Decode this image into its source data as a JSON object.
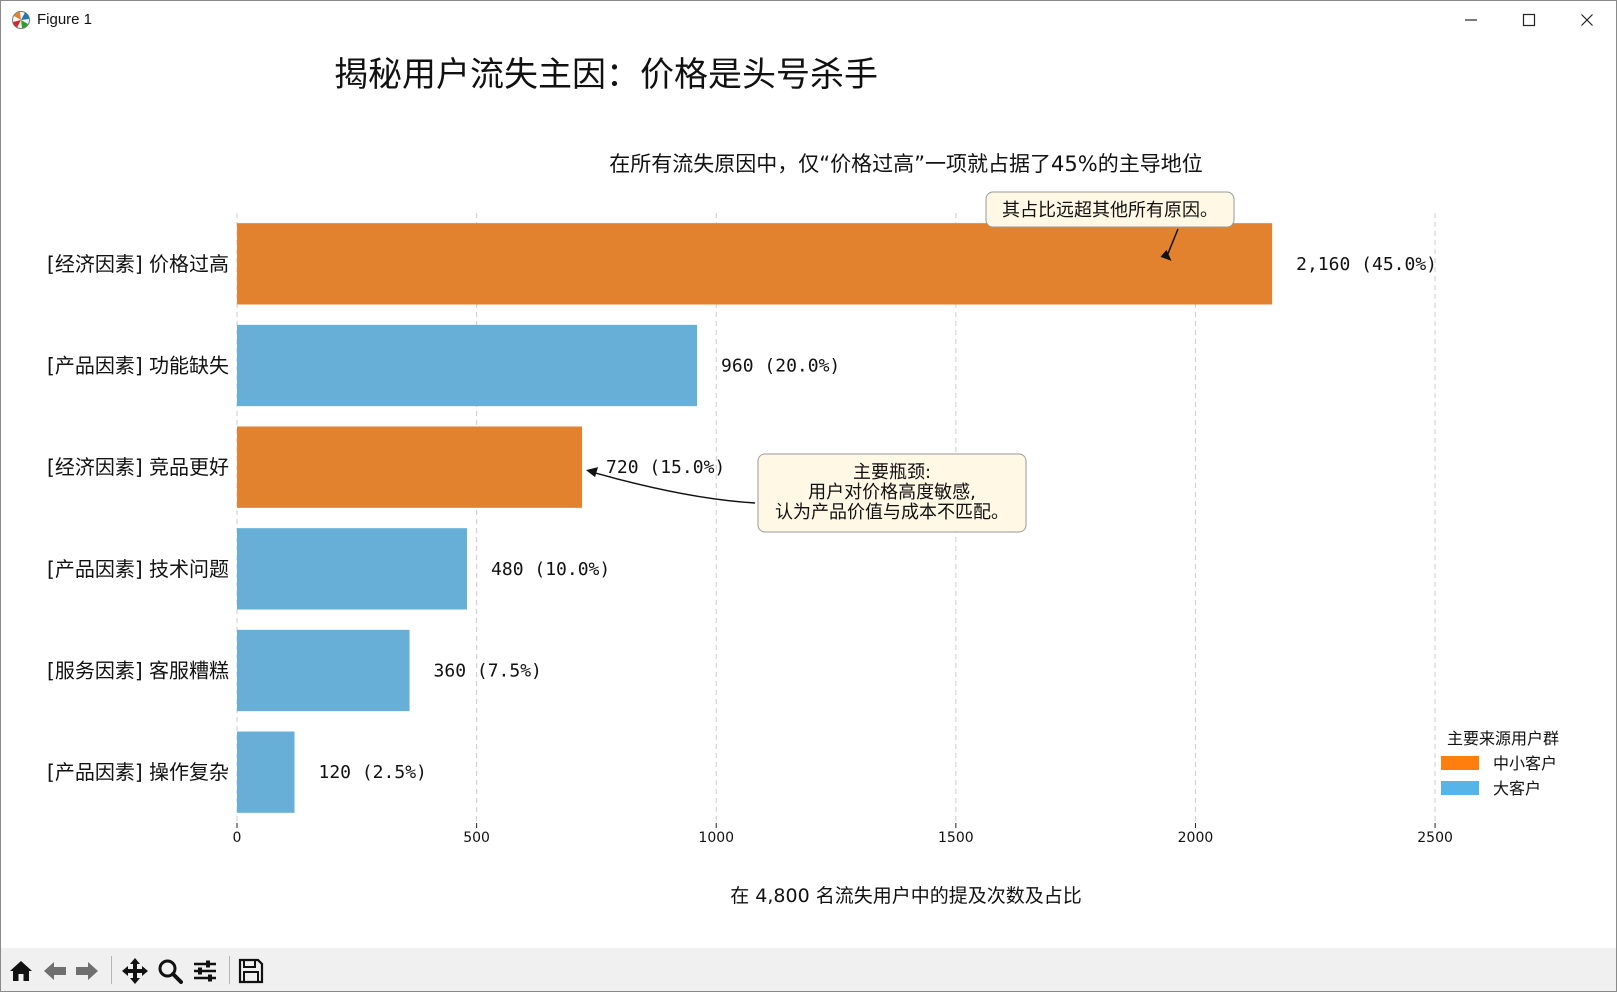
{
  "window": {
    "title": "Figure 1"
  },
  "icons": {
    "app": "matplotlib-icon",
    "minimize": "minimize-icon",
    "maximize": "maximize-icon",
    "close": "close-icon"
  },
  "toolbar": {
    "buttons": [
      "home-icon",
      "back-arrow-icon",
      "forward-arrow-icon",
      "pan-move-icon",
      "zoom-magnifier-icon",
      "configure-subplots-icon",
      "save-floppy-icon"
    ]
  },
  "colors": {
    "smb": "#E2822F",
    "large": "#68AFD7",
    "legend_smb": "#FF7F0E",
    "legend_large": "#56B4E9",
    "annotation_fill": "#FFF8E5",
    "grid": "#CCCCCC"
  },
  "chart_data": {
    "type": "bar",
    "orientation": "horizontal",
    "suptitle": "揭秘用户流失主因：价格是头号杀手",
    "title": "在所有流失原因中，仅“价格过高”一项就占据了45%的主导地位",
    "xlabel": "在 4,800 名流失用户中的提及次数及占比",
    "ylabel": "",
    "xlim": [
      0,
      2600
    ],
    "xticks": [
      "0",
      "500",
      "1000",
      "1500",
      "2000",
      "2500"
    ],
    "xtick_values": [
      0,
      500,
      1000,
      1500,
      2000,
      2500
    ],
    "grid": "x, dashed",
    "categories": [
      "[经济因素] 价格过高",
      "[产品因素] 功能缺失",
      "[经济因素] 竞品更好",
      "[产品因素] 技术问题",
      "[服务因素] 客服糟糕",
      "[产品因素] 操作复杂"
    ],
    "values": [
      2160,
      960,
      720,
      480,
      360,
      120
    ],
    "value_labels": [
      "2,160 (45.0%)",
      "960 (20.0%)",
      "720 (15.0%)",
      "480 (10.0%)",
      "360 (7.5%)",
      "120 (2.5%)"
    ],
    "groups": [
      "中小客户",
      "大客户",
      "中小客户",
      "大客户",
      "大客户",
      "大客户"
    ],
    "legend": {
      "title": "主要来源用户群",
      "location": "lower-right",
      "entries": [
        "中小客户",
        "大客户"
      ]
    },
    "annotations": [
      {
        "text": "其占比远超其他所有原因。",
        "target_category": "[经济因素] 价格过高",
        "target_value": 1950
      },
      {
        "text": "主要瓶颈:\n用户对价格高度敏感,\n认为产品价值与成本不匹配。",
        "lines": [
          "主要瓶颈:",
          "用户对价格高度敏感,",
          "认为产品价值与成本不匹配。"
        ],
        "target_category": "[经济因素] 竞品更好",
        "target_value": 720
      }
    ]
  }
}
